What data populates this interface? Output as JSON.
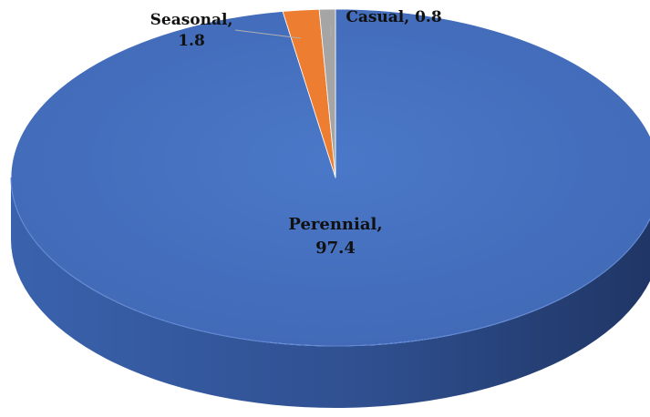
{
  "chart_data": {
    "type": "pie",
    "style": "3d",
    "categories": [
      "Perennial",
      "Seasonal",
      "Casual"
    ],
    "values": [
      97.4,
      1.8,
      0.8
    ],
    "colors": [
      "#4472C4",
      "#ED7D31",
      "#A5A5A5"
    ],
    "labels": [
      {
        "lines": [
          "Perennial,",
          "97.4"
        ]
      },
      {
        "lines": [
          "Seasonal,",
          "1.8"
        ]
      },
      {
        "lines": [
          "Casual, 0.8"
        ]
      }
    ],
    "title": "",
    "legend": "none"
  }
}
